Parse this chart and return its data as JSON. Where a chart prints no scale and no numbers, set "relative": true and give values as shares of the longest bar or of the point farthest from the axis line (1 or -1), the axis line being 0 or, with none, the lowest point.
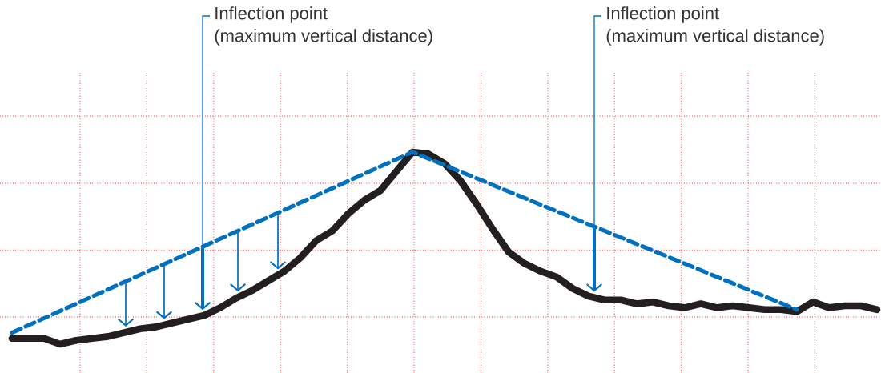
{
  "chart_data": {
    "type": "line",
    "relative": true,
    "grid": true,
    "categories": [
      null,
      null,
      null,
      null,
      null,
      null,
      null,
      null,
      null,
      null,
      null,
      null,
      null,
      null,
      null,
      null,
      null,
      null,
      null,
      null,
      null,
      null,
      null,
      null,
      null,
      null,
      null,
      null,
      null,
      null,
      null,
      null,
      null,
      null,
      null,
      null,
      null,
      null,
      null,
      null,
      null,
      null,
      null,
      null,
      null,
      null,
      null,
      null,
      null,
      null,
      null,
      null,
      null,
      null,
      null
    ],
    "series": [
      {
        "color": "#231f20",
        "line_style": "solid",
        "values": [
          0.03,
          0.03,
          0.03,
          0,
          0.02,
          0.03,
          0.04,
          0.06,
          0.08,
          0.09,
          0.11,
          0.13,
          0.15,
          0.19,
          0.24,
          0.28,
          0.33,
          0.38,
          0.45,
          0.54,
          0.59,
          0.68,
          0.75,
          0.8,
          0.9,
          1,
          0.99,
          0.94,
          0.85,
          0.73,
          0.6,
          0.48,
          0.42,
          0.38,
          0.35,
          0.29,
          0.25,
          0.23,
          0.23,
          0.21,
          0.22,
          0.2,
          0.19,
          0.21,
          0.19,
          0.2,
          0.19,
          0.18,
          0.18,
          0.17,
          0.22,
          0.19,
          0.2,
          0.2,
          0.18
        ]
      },
      {
        "color": "#0070c0",
        "line_style": "dashed",
        "values": [
          0.06,
          null,
          null,
          null,
          null,
          null,
          null,
          null,
          null,
          null,
          null,
          null,
          null,
          null,
          null,
          null,
          null,
          null,
          null,
          null,
          null,
          null,
          null,
          null,
          null,
          1,
          null,
          null,
          null,
          null,
          null,
          null,
          null,
          null,
          null,
          null,
          null,
          null,
          null,
          null,
          null,
          null,
          null,
          null,
          null,
          null,
          null,
          null,
          null,
          0.18,
          null,
          null,
          null,
          null,
          null
        ]
      }
    ],
    "annotations": [
      "Inflection point",
      "(maximum vertical distance)",
      "Inflection point",
      "(maximum vertical distance)"
    ]
  }
}
